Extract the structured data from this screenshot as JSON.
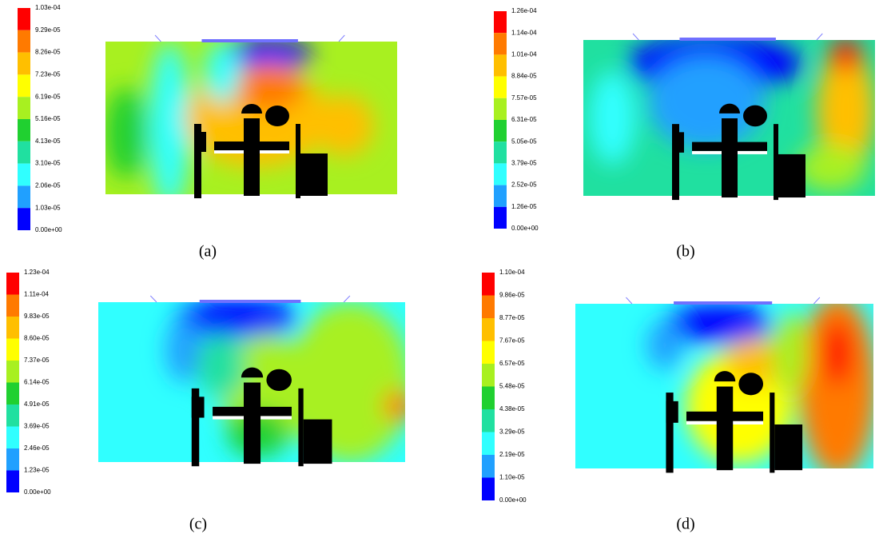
{
  "panels": [
    {
      "caption": "(a)",
      "colorbar": [
        "1.03e-04",
        "9.29e-05",
        "8.26e-05",
        "7.23e-05",
        "6.19e-05",
        "5.16e-05",
        "4.13e-05",
        "3.10e-05",
        "2.06e-05",
        "1.03e-05",
        "0.00e+00"
      ]
    },
    {
      "caption": "(b)",
      "colorbar": [
        "1.26e-04",
        "1.14e-04",
        "1.01e-04",
        "8.84e-05",
        "7.57e-05",
        "6.31e-05",
        "5.05e-05",
        "3.79e-05",
        "2.52e-05",
        "1.26e-05",
        "0.00e+00"
      ]
    },
    {
      "caption": "(c)",
      "colorbar": [
        "1.23e-04",
        "1.11e-04",
        "9.83e-05",
        "8.60e-05",
        "7.37e-05",
        "6.14e-05",
        "4.91e-05",
        "3.69e-05",
        "2.46e-05",
        "1.23e-05",
        "0.00e+00"
      ]
    },
    {
      "caption": "(d)",
      "colorbar": [
        "1.10e-04",
        "9.86e-05",
        "8.77e-05",
        "7.67e-05",
        "6.57e-05",
        "5.48e-05",
        "4.38e-05",
        "3.29e-05",
        "2.19e-05",
        "1.10e-05",
        "0.00e+00"
      ]
    }
  ]
}
